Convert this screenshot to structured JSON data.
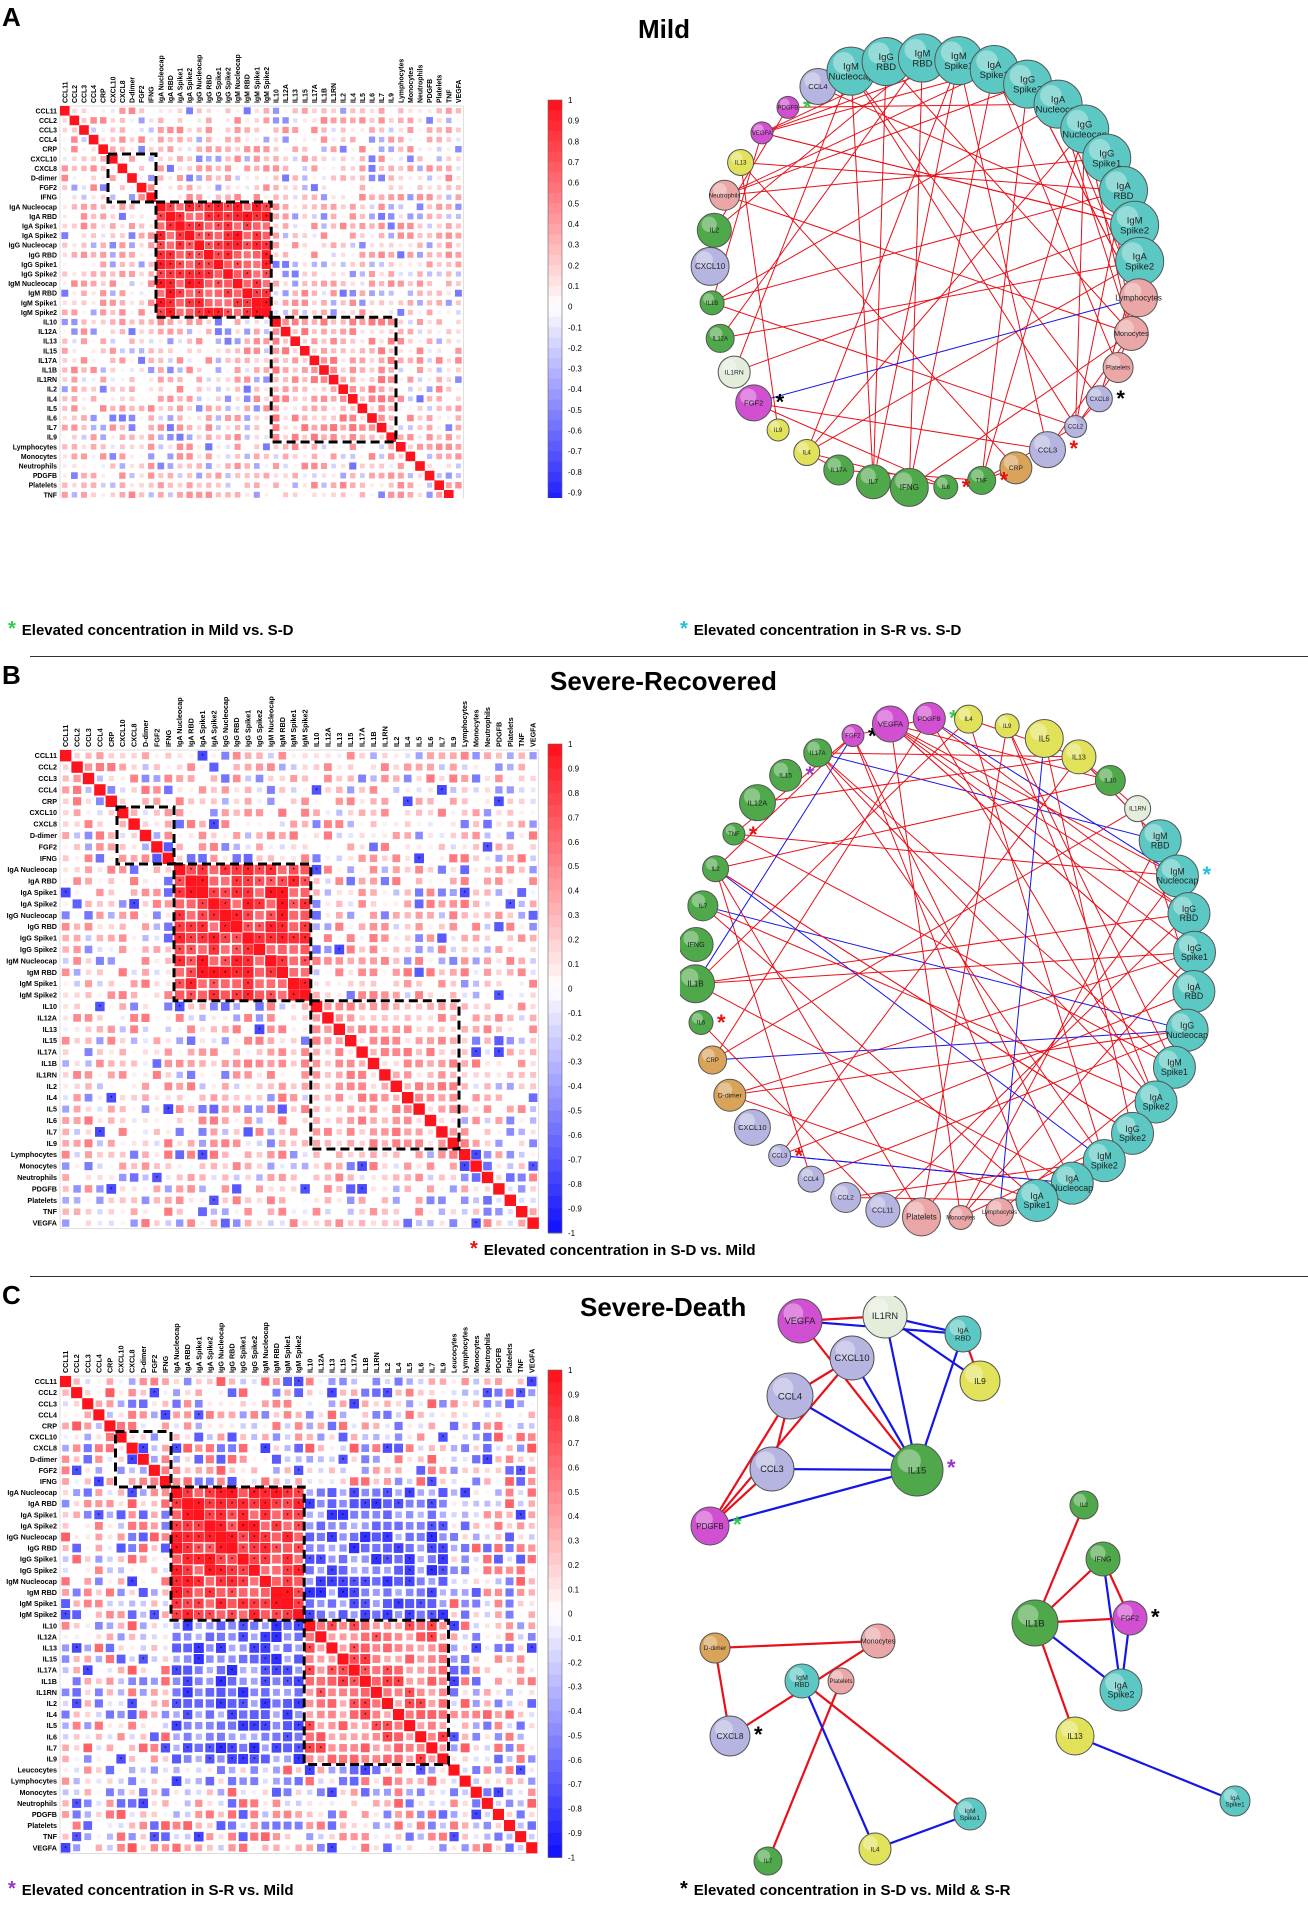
{
  "panels": [
    {
      "letter": "A",
      "title": "Mild"
    },
    {
      "letter": "B",
      "title": "Severe-Recovered"
    },
    {
      "letter": "C",
      "title": "Severe-Death"
    }
  ],
  "notes": {
    "a_left": "Elevated concentration in Mild vs. S-D",
    "a_right": "Elevated concentration in S-R vs. S-D",
    "b_center": "Elevated concentration in S-D vs. Mild",
    "c_left": "Elevated concentration in S-R vs. Mild",
    "c_right": "Elevated concentration in S-D vs. Mild & S-R"
  },
  "colors": {
    "positive": "#e8101a",
    "negative": "#1515e8",
    "antibody_node": "#5cc8c4",
    "interleukin_node": "#4fa84a",
    "chemokine_node": "#b6b4e0",
    "growth_factor_node": "#d14fd1",
    "yellow_node": "#e2e25a",
    "cell_node": "#eba7a7",
    "crp_node": "#d9a45a",
    "star_green": "#2ecc40",
    "star_cyan": "#21c0e0",
    "star_red": "#e81010",
    "star_purple": "#9933cc",
    "star_black": "#000000"
  },
  "chart_data": [
    {
      "type": "heatmap",
      "panel": "A",
      "title": "Mild",
      "variables": [
        "CCL11",
        "CCL2",
        "CCL3",
        "CCL4",
        "CRP",
        "CXCL10",
        "CXCL8",
        "D-dimer",
        "FGF2",
        "IFNG",
        "IgA Nucleocap",
        "IgA RBD",
        "IgA Spike1",
        "IgA Spike2",
        "IgG Nucleocap",
        "IgG RBD",
        "IgG Spike1",
        "IgG Spike2",
        "IgM Nucleocap",
        "IgM RBD",
        "IgM Spike1",
        "IgM Spike2",
        "IL10",
        "IL12A",
        "IL13",
        "IL15",
        "IL17A",
        "IL1B",
        "IL1RN",
        "IL2",
        "IL4",
        "IL5",
        "IL6",
        "IL7",
        "IL9",
        "Lymphocytes",
        "Monocytes",
        "Neutrophils",
        "PDGFB",
        "Platelets",
        "TNF",
        "VEGFA"
      ],
      "color_scale": {
        "min": -1,
        "max": 1,
        "ticks": [
          "1",
          "0.9",
          "0.8",
          "0.7",
          "0.6",
          "0.5",
          "0.4",
          "0.3",
          "0.2",
          "0.1",
          "0",
          "-0.1",
          "-0.2",
          "-0.3",
          "-0.4",
          "-0.5",
          "-0.6",
          "-0.7",
          "-0.8",
          "-0.9",
          "-1"
        ]
      },
      "blocks": [
        {
          "from": "CXCL10",
          "to": "IFNG"
        },
        {
          "from": "IgA Nucleocap",
          "to": "IgM Spike2"
        },
        {
          "from": "IL10",
          "to": "IL9"
        }
      ]
    },
    {
      "type": "heatmap",
      "panel": "B",
      "title": "Severe-Recovered",
      "variables": [
        "CCL11",
        "CCL2",
        "CCL3",
        "CCL4",
        "CRP",
        "CXCL10",
        "CXCL8",
        "D-dimer",
        "FGF2",
        "IFNG",
        "IgA Nucleocap",
        "IgA RBD",
        "IgA Spike1",
        "IgA Spike2",
        "IgG Nucleocap",
        "IgG RBD",
        "IgG Spike1",
        "IgG Spike2",
        "IgM Nucleocap",
        "IgM RBD",
        "IgM Spike1",
        "IgM Spike2",
        "IL10",
        "IL12A",
        "IL13",
        "IL15",
        "IL17A",
        "IL1B",
        "IL1RN",
        "IL2",
        "IL4",
        "IL5",
        "IL6",
        "IL7",
        "IL9",
        "Lymphocytes",
        "Monocytes",
        "Neutrophils",
        "PDGFB",
        "Platelets",
        "TNF",
        "VEGFA"
      ],
      "color_scale": {
        "min": -1,
        "max": 1,
        "ticks": [
          "1",
          "0.9",
          "0.8",
          "0.7",
          "0.6",
          "0.5",
          "0.4",
          "0.3",
          "0.2",
          "0.1",
          "0",
          "-0.1",
          "-0.2",
          "-0.3",
          "-0.4",
          "-0.5",
          "-0.6",
          "-0.7",
          "-0.8",
          "-0.9",
          "-1"
        ]
      },
      "blocks": [
        {
          "from": "CXCL10",
          "to": "IFNG"
        },
        {
          "from": "IgA Nucleocap",
          "to": "IgM Spike2"
        },
        {
          "from": "IL10",
          "to": "IL9"
        }
      ]
    },
    {
      "type": "heatmap",
      "panel": "C",
      "title": "Severe-Death",
      "variables": [
        "CCL11",
        "CCL2",
        "CCL3",
        "CCL4",
        "CRP",
        "CXCL10",
        "CXCL8",
        "D-dimer",
        "FGF2",
        "IFNG",
        "IgA Nucleocap",
        "IgA RBD",
        "IgA Spike1",
        "IgA Spike2",
        "IgG Nucleocap",
        "IgG RBD",
        "IgG Spike1",
        "IgG Spike2",
        "IgM Nucleocap",
        "IgM RBD",
        "IgM Spike1",
        "IgM Spike2",
        "IL10",
        "IL12A",
        "IL13",
        "IL15",
        "IL17A",
        "IL1B",
        "IL1RN",
        "IL2",
        "IL4",
        "IL5",
        "IL6",
        "IL7",
        "IL9",
        "Leucocytes",
        "Lymphocytes",
        "Monocytes",
        "Neutrophils",
        "PDGFB",
        "Platelets",
        "TNF",
        "VEGFA"
      ],
      "color_scale": {
        "min": -1,
        "max": 1,
        "ticks": [
          "1",
          "0.9",
          "0.8",
          "0.7",
          "0.6",
          "0.5",
          "0.4",
          "0.3",
          "0.2",
          "0.1",
          "0",
          "-0.1",
          "-0.2",
          "-0.3",
          "-0.4",
          "-0.5",
          "-0.6",
          "-0.7",
          "-0.8",
          "-0.9",
          "-1"
        ]
      },
      "blocks": [
        {
          "from": "CXCL10",
          "to": "IFNG"
        },
        {
          "from": "IgA Nucleocap",
          "to": "IgM Spike2"
        },
        {
          "from": "IL10",
          "to": "IL9"
        }
      ]
    }
  ],
  "networks": [
    {
      "panel": "A",
      "nodes": [
        {
          "id": "PDGFB",
          "star": "green"
        },
        {
          "id": "CCL4"
        },
        {
          "id": "IgM Nucleocap",
          "star": "cyan"
        },
        {
          "id": "IgG RBD"
        },
        {
          "id": "IgM RBD"
        },
        {
          "id": "IgM Spike1"
        },
        {
          "id": "IgA Spike1"
        },
        {
          "id": "IgG Spike2"
        },
        {
          "id": "IgA Nucleocap"
        },
        {
          "id": "IgG Nucleocap"
        },
        {
          "id": "IgG Spike1"
        },
        {
          "id": "IgA RBD"
        },
        {
          "id": "IgM Spike2"
        },
        {
          "id": "IgA Spike2"
        },
        {
          "id": "Lymphocytes"
        },
        {
          "id": "Monocytes"
        },
        {
          "id": "Platelets"
        },
        {
          "id": "CXCL8",
          "star": "black"
        },
        {
          "id": "CCL2"
        },
        {
          "id": "CCL3",
          "star": "red"
        },
        {
          "id": "CRP"
        },
        {
          "id": "TNF",
          "star": "red"
        },
        {
          "id": "IL6",
          "star": "red"
        },
        {
          "id": "IFNG"
        },
        {
          "id": "IL7"
        },
        {
          "id": "IL17A"
        },
        {
          "id": "IL4"
        },
        {
          "id": "IL9"
        },
        {
          "id": "FGF2",
          "star": "black"
        },
        {
          "id": "IL1RN"
        },
        {
          "id": "IL12A"
        },
        {
          "id": "IL1B"
        },
        {
          "id": "CXCL10"
        },
        {
          "id": "IL2"
        },
        {
          "id": "Neutrophils"
        },
        {
          "id": "IL13"
        },
        {
          "id": "VEGFA"
        }
      ]
    },
    {
      "panel": "B",
      "nodes": [
        {
          "id": "FGF2",
          "star": "black"
        },
        {
          "id": "VEGFA"
        },
        {
          "id": "PDGFB",
          "star": "green"
        },
        {
          "id": "IL4"
        },
        {
          "id": "IL9"
        },
        {
          "id": "IL5"
        },
        {
          "id": "IL13"
        },
        {
          "id": "IL10"
        },
        {
          "id": "IL1RN"
        },
        {
          "id": "IgM RBD"
        },
        {
          "id": "IgM Nucleocap",
          "star": "cyan"
        },
        {
          "id": "IgG RBD"
        },
        {
          "id": "IgG Spike1"
        },
        {
          "id": "IgA RBD"
        },
        {
          "id": "IgG Nucleocap"
        },
        {
          "id": "IgM Spike1"
        },
        {
          "id": "IgA Spike2"
        },
        {
          "id": "IgG Spike2"
        },
        {
          "id": "IgM Spike2"
        },
        {
          "id": "IgA Nucleocap"
        },
        {
          "id": "IgA Spike1"
        },
        {
          "id": "Lymphocytes"
        },
        {
          "id": "Monocytes"
        },
        {
          "id": "Platelets"
        },
        {
          "id": "CCL11"
        },
        {
          "id": "CCL2"
        },
        {
          "id": "CCL4"
        },
        {
          "id": "CCL3",
          "star": "red"
        },
        {
          "id": "CXCL10"
        },
        {
          "id": "D-dimer"
        },
        {
          "id": "CRP"
        },
        {
          "id": "IL6",
          "star": "red"
        },
        {
          "id": "IL1B"
        },
        {
          "id": "IFNG"
        },
        {
          "id": "IL7"
        },
        {
          "id": "IL2"
        },
        {
          "id": "TNF",
          "star": "red"
        },
        {
          "id": "IL12A"
        },
        {
          "id": "IL15",
          "star": "purple"
        },
        {
          "id": "IL17A"
        }
      ]
    },
    {
      "panel": "C",
      "nodes": [
        {
          "id": "VEGFA"
        },
        {
          "id": "IL1RN"
        },
        {
          "id": "IgA RBD"
        },
        {
          "id": "CXCL10"
        },
        {
          "id": "CCL4"
        },
        {
          "id": "IL9"
        },
        {
          "id": "CCL3"
        },
        {
          "id": "IL15",
          "star": "purple"
        },
        {
          "id": "PDGFB",
          "star": "green"
        },
        {
          "id": "IL2"
        },
        {
          "id": "IFNG"
        },
        {
          "id": "IL1B"
        },
        {
          "id": "FGF2",
          "star": "black"
        },
        {
          "id": "IgA Spike2"
        },
        {
          "id": "D-dimer"
        },
        {
          "id": "Monocytes"
        },
        {
          "id": "Platelets"
        },
        {
          "id": "IgM RBD"
        },
        {
          "id": "CXCL8",
          "star": "black"
        },
        {
          "id": "IL13"
        },
        {
          "id": "IgM Spike1"
        },
        {
          "id": "IgA Spike1"
        },
        {
          "id": "IL4"
        },
        {
          "id": "IL7"
        }
      ],
      "edges": [
        {
          "s": "VEGFA",
          "t": "IL1RN",
          "sign": "positive"
        },
        {
          "s": "VEGFA",
          "t": "IgA RBD",
          "sign": "negative"
        },
        {
          "s": "VEGFA",
          "t": "IL15",
          "sign": "positive"
        },
        {
          "s": "IL1RN",
          "t": "IgA RBD",
          "sign": "negative"
        },
        {
          "s": "IL1RN",
          "t": "IL9",
          "sign": "negative"
        },
        {
          "s": "IL1RN",
          "t": "IL15",
          "sign": "negative"
        },
        {
          "s": "IgA RBD",
          "t": "IL9",
          "sign": "positive"
        },
        {
          "s": "IgA RBD",
          "t": "IL15",
          "sign": "negative"
        },
        {
          "s": "CXCL10",
          "t": "CCL4",
          "sign": "positive"
        },
        {
          "s": "CXCL10",
          "t": "IL15",
          "sign": "negative"
        },
        {
          "s": "CXCL10",
          "t": "PDGFB",
          "sign": "positive"
        },
        {
          "s": "CCL4",
          "t": "CCL3",
          "sign": "positive"
        },
        {
          "s": "CCL4",
          "t": "IL15",
          "sign": "negative"
        },
        {
          "s": "CCL4",
          "t": "PDGFB",
          "sign": "positive"
        },
        {
          "s": "CCL3",
          "t": "IL15",
          "sign": "negative"
        },
        {
          "s": "CCL3",
          "t": "PDGFB",
          "sign": "positive"
        },
        {
          "s": "IL15",
          "t": "PDGFB",
          "sign": "negative"
        },
        {
          "s": "IL2",
          "t": "IL1B",
          "sign": "positive"
        },
        {
          "s": "IFNG",
          "t": "IL1B",
          "sign": "positive"
        },
        {
          "s": "IFNG",
          "t": "FGF2",
          "sign": "positive"
        },
        {
          "s": "IFNG",
          "t": "IgA Spike2",
          "sign": "negative"
        },
        {
          "s": "IL1B",
          "t": "FGF2",
          "sign": "positive"
        },
        {
          "s": "IL1B",
          "t": "IgA Spike2",
          "sign": "negative"
        },
        {
          "s": "IL1B",
          "t": "IL13",
          "sign": "positive"
        },
        {
          "s": "FGF2",
          "t": "IgA Spike2",
          "sign": "negative"
        },
        {
          "s": "IL13",
          "t": "IgA Spike1",
          "sign": "negative"
        },
        {
          "s": "D-dimer",
          "t": "Monocytes",
          "sign": "positive"
        },
        {
          "s": "D-dimer",
          "t": "CXCL8",
          "sign": "positive"
        },
        {
          "s": "Monocytes",
          "t": "CXCL8",
          "sign": "positive"
        },
        {
          "s": "Platelets",
          "t": "IL7",
          "sign": "positive"
        },
        {
          "s": "IgM RBD",
          "t": "IgM Spike1",
          "sign": "positive"
        },
        {
          "s": "IgM RBD",
          "t": "IL4",
          "sign": "negative"
        },
        {
          "s": "IL4",
          "t": "IgM Spike1",
          "sign": "negative"
        }
      ]
    }
  ]
}
